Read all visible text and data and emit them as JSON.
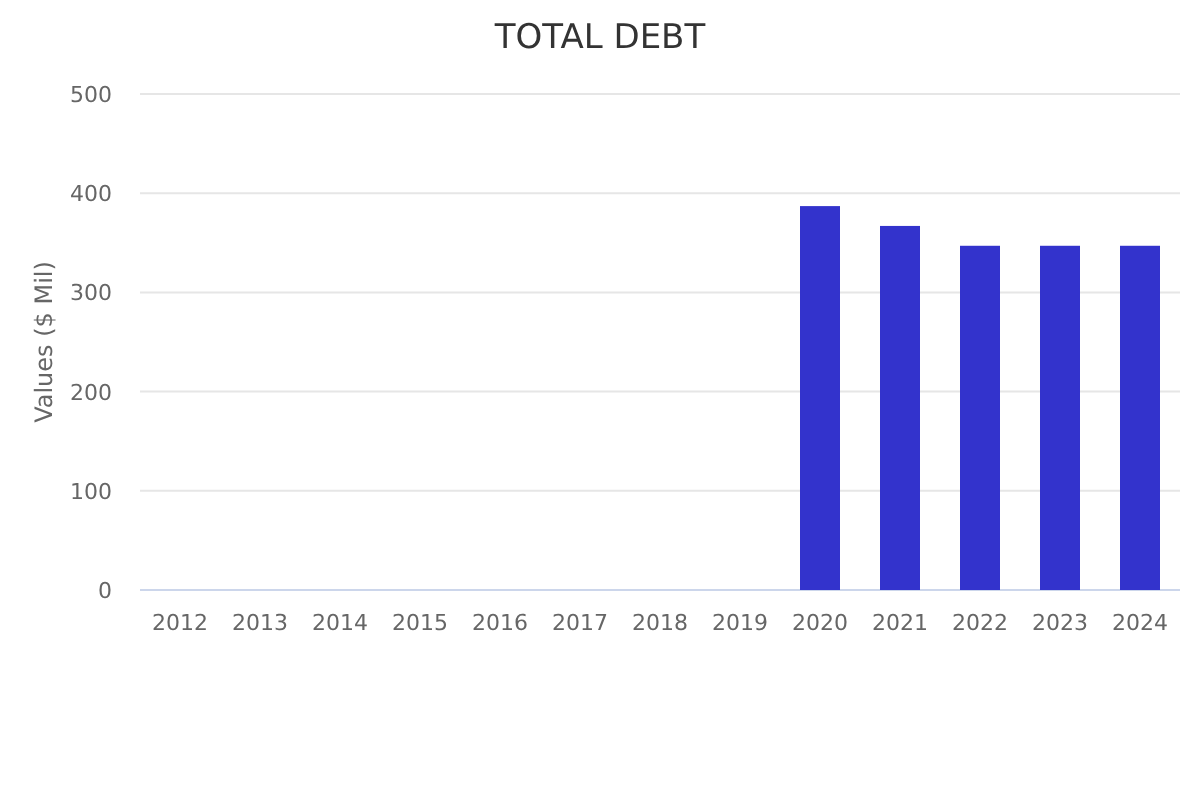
{
  "chart_data": {
    "type": "bar",
    "title": "TOTAL DEBT",
    "ylabel": "Values ($ Mil)",
    "categories": [
      "2012",
      "2013",
      "2014",
      "2015",
      "2016",
      "2017",
      "2018",
      "2019",
      "2020",
      "2021",
      "2022",
      "2023",
      "2024"
    ],
    "series": [
      {
        "color": "#3333cc",
        "values": [
          null,
          null,
          null,
          null,
          null,
          null,
          null,
          null,
          387,
          367,
          347,
          347,
          347
        ]
      }
    ],
    "ylim": [
      0,
      500
    ],
    "yticks": [
      0,
      100,
      200,
      300,
      400,
      500
    ],
    "grid": "y"
  }
}
